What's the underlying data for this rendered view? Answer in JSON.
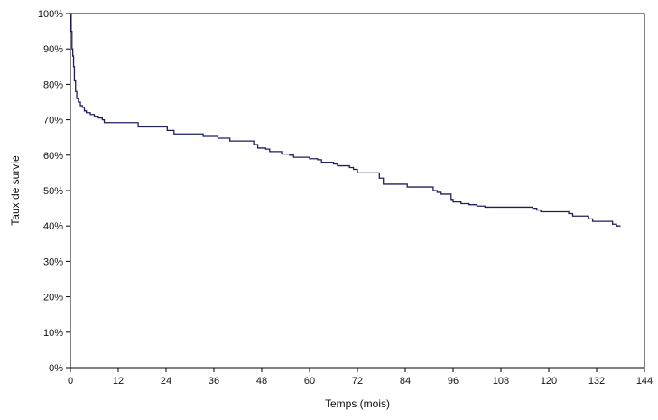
{
  "colors": {
    "line": "#1f1f5f",
    "frame": "#000000"
  },
  "chart_data": {
    "type": "line",
    "step": true,
    "title": "",
    "xlabel": "Temps (mois)",
    "ylabel": "Taux de survie",
    "xlim": [
      0,
      144
    ],
    "ylim": [
      0,
      100
    ],
    "xticks": [
      0,
      12,
      24,
      36,
      48,
      60,
      72,
      84,
      96,
      108,
      120,
      132,
      144
    ],
    "xtick_labels": [
      "0",
      "12",
      "24",
      "36",
      "48",
      "60",
      "72",
      "84",
      "96",
      "108",
      "120",
      "132",
      "144"
    ],
    "yticks": [
      0,
      10,
      20,
      30,
      40,
      50,
      60,
      70,
      80,
      90,
      100
    ],
    "ytick_labels": [
      "0%",
      "10%",
      "20%",
      "30%",
      "40%",
      "50%",
      "60%",
      "70%",
      "80%",
      "90%",
      "100%"
    ],
    "grid": false,
    "series": [
      {
        "points": [
          [
            0,
            100
          ],
          [
            0.2,
            95
          ],
          [
            0.4,
            90
          ],
          [
            0.6,
            88
          ],
          [
            0.8,
            85
          ],
          [
            1,
            81
          ],
          [
            1.3,
            78
          ],
          [
            1.6,
            76
          ],
          [
            2,
            75
          ],
          [
            2.5,
            74
          ],
          [
            3,
            73.5
          ],
          [
            3.5,
            72.5
          ],
          [
            4,
            72
          ],
          [
            5,
            71.5
          ],
          [
            6,
            71
          ],
          [
            7,
            70.5
          ],
          [
            8,
            70
          ],
          [
            8.5,
            69.2
          ],
          [
            14,
            69.2
          ],
          [
            17,
            68
          ],
          [
            24,
            68
          ],
          [
            24.3,
            67
          ],
          [
            26,
            66
          ],
          [
            33,
            66
          ],
          [
            33.3,
            65.3
          ],
          [
            36,
            65.3
          ],
          [
            37,
            64.8
          ],
          [
            40,
            64
          ],
          [
            45,
            64
          ],
          [
            46,
            63
          ],
          [
            47,
            62
          ],
          [
            49,
            61.7
          ],
          [
            50,
            61
          ],
          [
            52,
            61
          ],
          [
            53,
            60.3
          ],
          [
            55,
            60
          ],
          [
            56,
            59.4
          ],
          [
            58,
            59.4
          ],
          [
            60,
            59
          ],
          [
            62,
            58.7
          ],
          [
            63,
            58
          ],
          [
            65,
            58
          ],
          [
            66,
            57.5
          ],
          [
            67,
            57
          ],
          [
            69,
            57
          ],
          [
            70,
            56.5
          ],
          [
            71,
            56
          ],
          [
            72,
            55
          ],
          [
            77,
            55
          ],
          [
            77.5,
            53.5
          ],
          [
            78.5,
            51.8
          ],
          [
            84,
            51.8
          ],
          [
            84.5,
            51
          ],
          [
            90,
            51
          ],
          [
            91,
            50
          ],
          [
            92,
            49.5
          ],
          [
            93,
            49
          ],
          [
            95,
            49
          ],
          [
            95.5,
            47.5
          ],
          [
            96,
            46.8
          ],
          [
            98,
            46.3
          ],
          [
            100,
            46
          ],
          [
            102,
            45.6
          ],
          [
            104,
            45.3
          ],
          [
            115,
            45.3
          ],
          [
            116,
            45
          ],
          [
            117,
            44.5
          ],
          [
            118,
            44
          ],
          [
            124,
            44
          ],
          [
            125,
            43.5
          ],
          [
            126,
            42.8
          ],
          [
            129,
            42.8
          ],
          [
            130,
            42
          ],
          [
            131,
            41.3
          ],
          [
            135,
            41.3
          ],
          [
            136,
            40.5
          ],
          [
            137,
            40
          ],
          [
            138,
            40
          ]
        ]
      }
    ]
  }
}
